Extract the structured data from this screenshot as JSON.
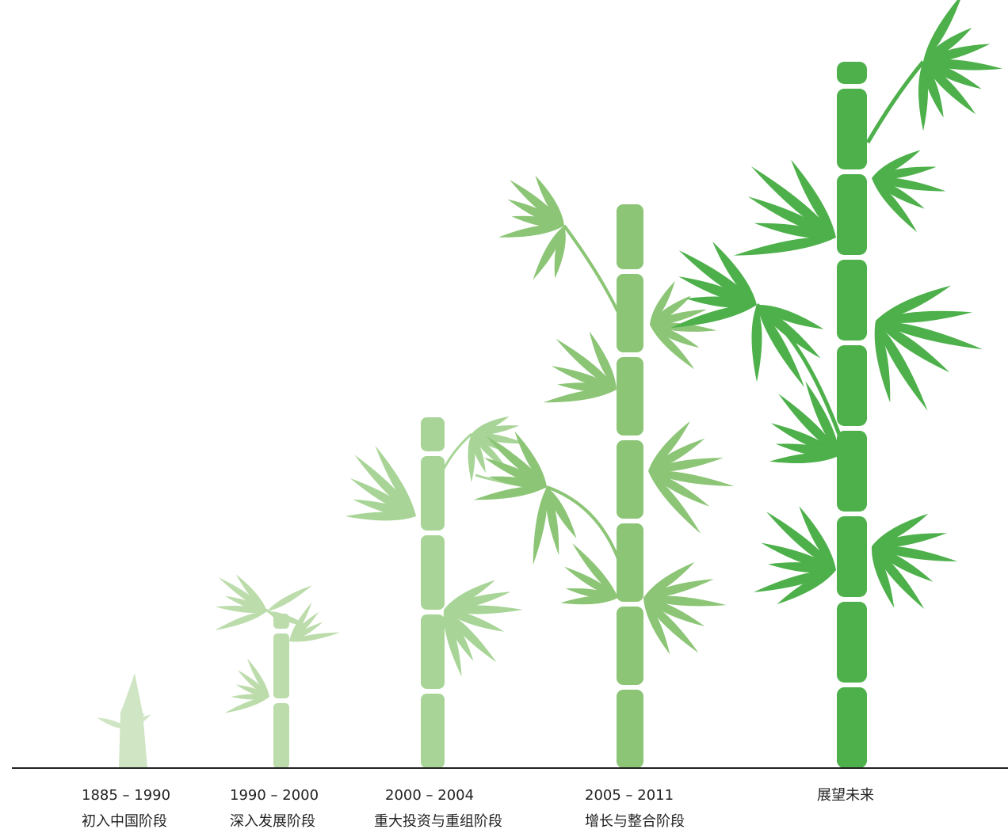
{
  "stages": [
    {
      "period": "1885 – 1990",
      "label": "初入中国阶段"
    },
    {
      "period": "1990 – 2000",
      "label": "深入发展阶段"
    },
    {
      "period": "2000 – 2004",
      "label": "重大投资与重组阶段"
    },
    {
      "period": "2005 – 2011",
      "label": "增长与整合阶段"
    },
    {
      "label": "展望未来"
    }
  ]
}
